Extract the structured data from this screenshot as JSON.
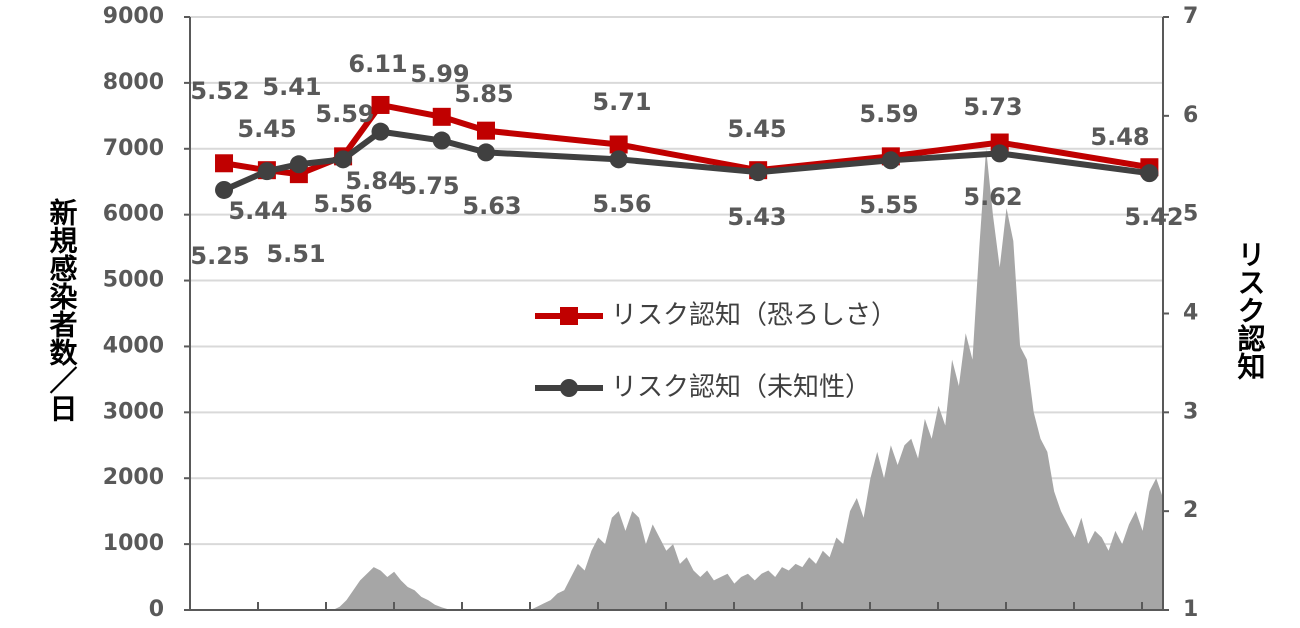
{
  "chart_data": {
    "type": "line",
    "y_label": "新規感染者数／日",
    "y2_label": "リスク認知",
    "xlim": [
      0,
      143
    ],
    "ylim": [
      0,
      9000
    ],
    "yticks": [
      0,
      1000,
      2000,
      3000,
      4000,
      5000,
      6000,
      7000,
      8000,
      9000
    ],
    "y2lim": [
      1,
      7
    ],
    "y2ticks": [
      1,
      2,
      3,
      4,
      5,
      6,
      7
    ],
    "grid": true,
    "legend": "center",
    "area": {
      "color": "#a6a6a6",
      "x": [
        0,
        1,
        2,
        3,
        4,
        5,
        6,
        7,
        8,
        9,
        10,
        11,
        12,
        13,
        14,
        15,
        16,
        17,
        18,
        19,
        20,
        21,
        22,
        23,
        24,
        25,
        26,
        27,
        28,
        29,
        30,
        31,
        32,
        33,
        34,
        35,
        36,
        37,
        38,
        39,
        40,
        41,
        42,
        43,
        44,
        45,
        46,
        47,
        48,
        49,
        50,
        51,
        52,
        53,
        54,
        55,
        56,
        57,
        58,
        59,
        60,
        61,
        62,
        63,
        64,
        65,
        66,
        67,
        68,
        69,
        70,
        71,
        72,
        73,
        74,
        75,
        76,
        77,
        78,
        79,
        80,
        81,
        82,
        83,
        84,
        85,
        86,
        87,
        88,
        89,
        90,
        91,
        92,
        93,
        94,
        95,
        96,
        97,
        98,
        99,
        100,
        101,
        102,
        103,
        104,
        105,
        106,
        107,
        108,
        109,
        110,
        111,
        112,
        113,
        114,
        115,
        116,
        117,
        118,
        119,
        120,
        121,
        122,
        123,
        124,
        125,
        126,
        127,
        128,
        129,
        130,
        131,
        132,
        133,
        134,
        135,
        136,
        137,
        138,
        139,
        140,
        141,
        142,
        143
      ],
      "values": [
        0,
        0,
        0,
        0,
        0,
        0,
        0,
        0,
        0,
        0,
        0,
        0,
        0,
        0,
        0,
        0,
        0,
        0,
        0,
        0,
        0,
        0,
        50,
        150,
        300,
        450,
        550,
        650,
        600,
        500,
        580,
        450,
        350,
        300,
        200,
        150,
        80,
        40,
        10,
        0,
        0,
        0,
        0,
        0,
        0,
        0,
        0,
        0,
        0,
        0,
        0,
        50,
        100,
        150,
        250,
        300,
        500,
        700,
        600,
        900,
        1100,
        1000,
        1400,
        1500,
        1200,
        1500,
        1400,
        1000,
        1300,
        1100,
        900,
        1000,
        700,
        800,
        600,
        500,
        600,
        450,
        500,
        550,
        400,
        500,
        550,
        450,
        550,
        600,
        500,
        650,
        600,
        700,
        650,
        800,
        700,
        900,
        800,
        1100,
        1000,
        1500,
        1700,
        1400,
        2000,
        2400,
        2000,
        2500,
        2200,
        2500,
        2600,
        2300,
        2900,
        2600,
        3100,
        2800,
        3800,
        3400,
        4200,
        3800,
        5500,
        7000,
        6000,
        5200,
        6100,
        5600,
        4000,
        3800,
        3000,
        2600,
        2400,
        1800,
        1500,
        1300,
        1100,
        1400,
        1000,
        1200,
        1100,
        900,
        1200,
        1000,
        1300,
        1500,
        1200,
        1800,
        2000,
        1700
      ]
    },
    "series": [
      {
        "name": "リスク認知（恐ろしさ）",
        "color": "#c00000",
        "marker": "square",
        "axis": "y2",
        "x": [
          5,
          11.3,
          16,
          22.5,
          28,
          37,
          43.5,
          63,
          83.5,
          103,
          119,
          141
        ],
        "values": [
          5.52,
          5.45,
          5.41,
          5.59,
          6.11,
          5.99,
          5.85,
          5.71,
          5.45,
          5.59,
          5.73,
          5.48
        ]
      },
      {
        "name": "リスク認知（未知性）",
        "color": "#404040",
        "marker": "circle",
        "axis": "y2",
        "x": [
          5,
          11.3,
          16,
          22.5,
          28,
          37,
          43.5,
          63,
          83.5,
          103,
          119,
          141
        ],
        "values": [
          5.25,
          5.44,
          5.51,
          5.56,
          5.84,
          5.75,
          5.63,
          5.56,
          5.43,
          5.55,
          5.62,
          5.42
        ]
      }
    ]
  }
}
